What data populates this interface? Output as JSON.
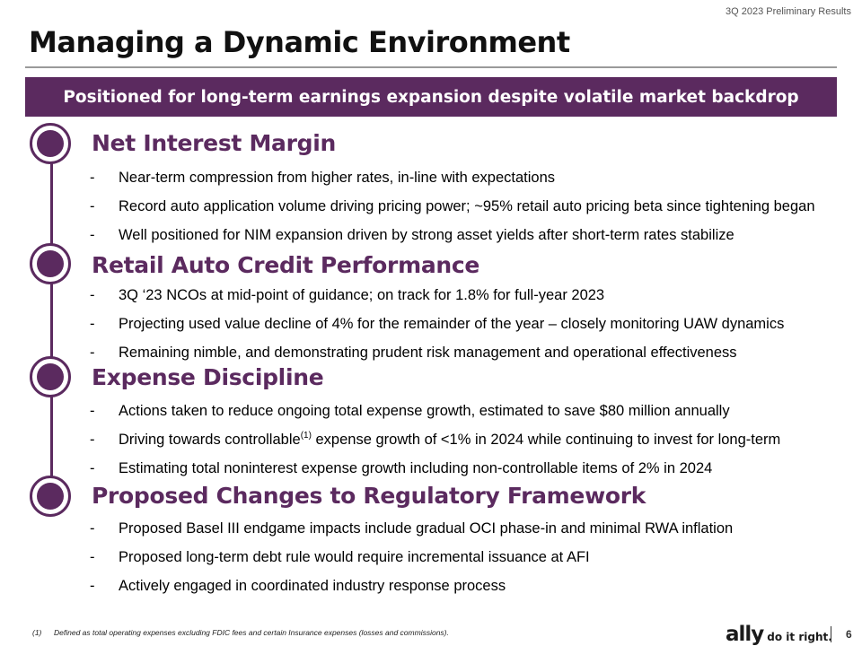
{
  "header": {
    "report_label": "3Q 2023 Preliminary Results",
    "title": "Managing a Dynamic Environment",
    "banner": "Positioned for long-term earnings expansion despite volatile market backdrop"
  },
  "sections": [
    {
      "title": "Net Interest Margin",
      "bullets": [
        "Near-term compression from higher rates, in-line with expectations",
        "Record auto application volume driving pricing power; ~95% retail auto pricing beta since tightening began",
        "Well positioned for NIM expansion driven by strong asset yields after short-term rates stabilize"
      ]
    },
    {
      "title": "Retail Auto Credit Performance",
      "bullets": [
        "3Q ‘23 NCOs at mid-point of guidance; on track for 1.8% for full-year 2023",
        "Projecting used value decline of 4% for the remainder of the year – closely monitoring UAW dynamics",
        "Remaining nimble, and demonstrating prudent risk management and operational effectiveness"
      ]
    },
    {
      "title": "Expense Discipline",
      "bullets": [
        "Actions taken to reduce ongoing total expense growth, estimated to save $80 million annually",
        {
          "before": "Driving towards controllable",
          "sup": "(1)",
          "after": " expense growth of <1% in 2024 while continuing to invest for long-term"
        },
        "Estimating total noninterest expense growth including non-controllable items of 2% in 2024"
      ]
    },
    {
      "title": "Proposed Changes to Regulatory Framework",
      "bullets": [
        "Proposed Basel III endgame impacts include gradual OCI phase-in and minimal RWA inflation",
        "Proposed long-term debt rule would require incremental issuance at AFI",
        "Actively engaged in coordinated industry response process"
      ]
    }
  ],
  "bullet_marker": "-",
  "footnote": {
    "number": "(1)",
    "text": "Defined as total operating expenses excluding FDIC fees and certain Insurance expenses (losses and commissions)."
  },
  "footer": {
    "logo_text": "ally",
    "tagline": "do it right.",
    "page_number": "6"
  },
  "colors": {
    "brand_purple": "#5b2a5f"
  }
}
